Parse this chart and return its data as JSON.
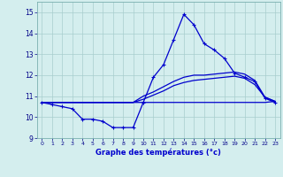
{
  "xlabel": "Graphe des températures (°c)",
  "hours": [
    0,
    1,
    2,
    3,
    4,
    5,
    6,
    7,
    8,
    9,
    10,
    11,
    12,
    13,
    14,
    15,
    16,
    17,
    18,
    19,
    20,
    21,
    22,
    23
  ],
  "temp_main": [
    10.7,
    10.6,
    10.5,
    10.4,
    9.9,
    9.9,
    9.8,
    9.5,
    9.5,
    9.5,
    10.7,
    11.9,
    12.5,
    13.7,
    14.9,
    14.4,
    13.5,
    13.2,
    12.8,
    12.1,
    11.9,
    11.7,
    10.9,
    10.7
  ],
  "temp_flat": [
    10.7,
    10.7,
    10.7,
    10.7,
    10.7,
    10.7,
    10.7,
    10.7,
    10.7,
    10.7,
    10.7,
    10.7,
    10.7,
    10.7,
    10.7,
    10.7,
    10.7,
    10.7,
    10.7,
    10.7,
    10.7,
    10.7,
    10.7,
    10.75
  ],
  "temp_line2": [
    10.7,
    10.7,
    10.7,
    10.7,
    10.7,
    10.7,
    10.7,
    10.7,
    10.7,
    10.7,
    10.85,
    11.05,
    11.25,
    11.5,
    11.65,
    11.75,
    11.8,
    11.85,
    11.9,
    11.95,
    11.85,
    11.55,
    10.95,
    10.75
  ],
  "temp_line3": [
    10.7,
    10.7,
    10.7,
    10.7,
    10.7,
    10.7,
    10.7,
    10.7,
    10.7,
    10.7,
    11.0,
    11.2,
    11.45,
    11.7,
    11.9,
    12.0,
    12.0,
    12.05,
    12.1,
    12.15,
    12.05,
    11.75,
    10.95,
    10.75
  ],
  "line_color": "#0000cd",
  "bg_color": "#d4eeee",
  "grid_color": "#a8cece",
  "ylim": [
    9.0,
    15.5
  ],
  "yticks": [
    9,
    10,
    11,
    12,
    13,
    14,
    15
  ],
  "xlim": [
    -0.5,
    23.5
  ]
}
